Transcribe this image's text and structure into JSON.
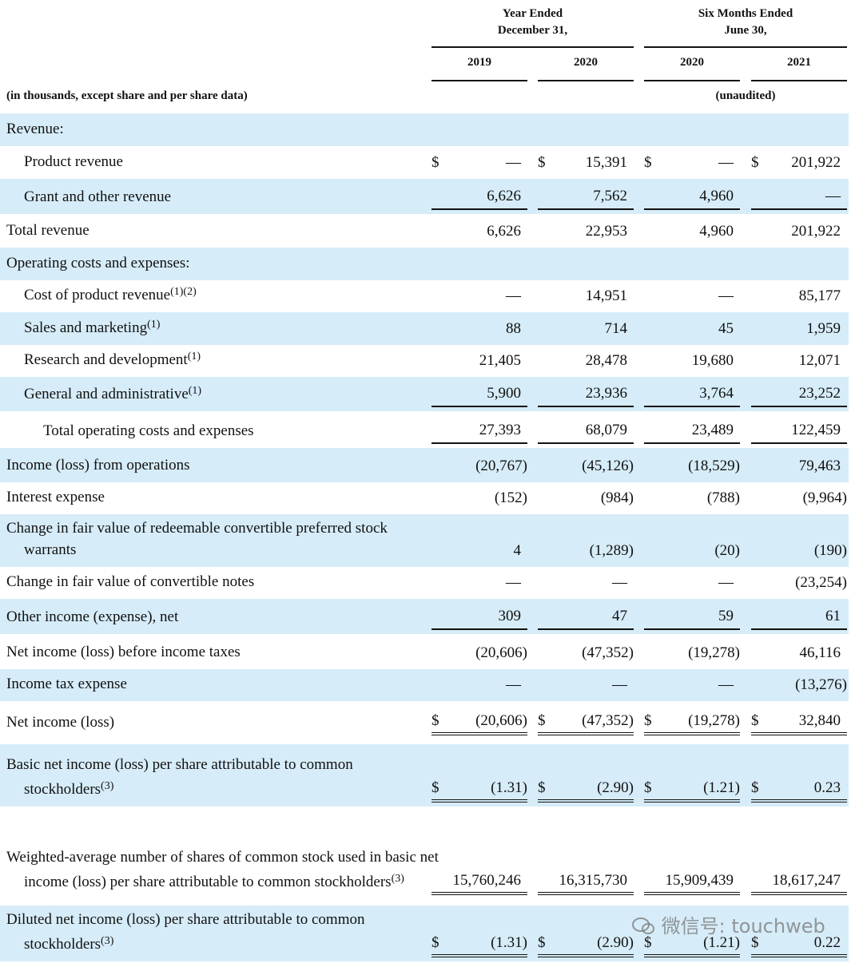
{
  "header": {
    "groups": [
      [
        "Year Ended",
        "December 31,"
      ],
      [
        "Six Months Ended",
        "June 30,"
      ]
    ],
    "columns": [
      "2019",
      "2020",
      "2020",
      "2021"
    ],
    "note": "(in thousands, except share and per share data)",
    "unaudited": "(unaudited)"
  },
  "table": {
    "rows": [
      {
        "label": "Revenue:"
      },
      {
        "label": "Product revenue",
        "signs": [
          "$",
          "$",
          "$",
          "$"
        ],
        "values": [
          "—",
          "15,391",
          "—",
          "201,922"
        ]
      },
      {
        "label": "Grant and other revenue",
        "values": [
          "6,626",
          "7,562",
          "4,960",
          "—"
        ]
      },
      {
        "label": "Total revenue",
        "values": [
          "6,626",
          "22,953",
          "4,960",
          "201,922"
        ]
      },
      {
        "label": "Operating costs and expenses:"
      },
      {
        "label": "Cost of product revenue",
        "note": "(1)(2)",
        "values": [
          "—",
          "14,951",
          "—",
          "85,177"
        ]
      },
      {
        "label": "Sales and marketing",
        "note": "(1)",
        "values": [
          "88",
          "714",
          "45",
          "1,959"
        ]
      },
      {
        "label": "Research and development",
        "note": "(1)",
        "values": [
          "21,405",
          "28,478",
          "19,680",
          "12,071"
        ]
      },
      {
        "label": "General and administrative",
        "note": "(1)",
        "values": [
          "5,900",
          "23,936",
          "3,764",
          "23,252"
        ]
      },
      {
        "label": "Total operating costs and expenses",
        "values": [
          "27,393",
          "68,079",
          "23,489",
          "122,459"
        ]
      },
      {
        "label": "Income (loss) from operations",
        "values": [
          "(20,767)",
          "(45,126)",
          "(18,529)",
          "79,463"
        ]
      },
      {
        "label": "Interest expense",
        "values": [
          "(152)",
          "(984)",
          "(788)",
          "(9,964)"
        ]
      },
      {
        "label": "Change in fair value of redeemable convertible preferred stock warrants",
        "values": [
          "4",
          "(1,289)",
          "(20)",
          "(190)"
        ]
      },
      {
        "label": "Change in fair value of convertible notes",
        "values": [
          "—",
          "—",
          "—",
          "(23,254)"
        ]
      },
      {
        "label": "Other income (expense), net",
        "values": [
          "309",
          "47",
          "59",
          "61"
        ]
      },
      {
        "label": "Net income (loss) before income taxes",
        "values": [
          "(20,606)",
          "(47,352)",
          "(19,278)",
          "46,116"
        ]
      },
      {
        "label": "Income tax expense",
        "values": [
          "—",
          "—",
          "—",
          "(13,276)"
        ]
      },
      {
        "label": "Net income (loss)",
        "signs": [
          "$",
          "$",
          "$",
          "$"
        ],
        "values": [
          "(20,606)",
          "(47,352)",
          "(19,278)",
          "32,840"
        ]
      },
      {
        "label": "Basic net income (loss) per share attributable to common stockholders",
        "note": "(3)",
        "signs": [
          "$",
          "$",
          "$",
          "$"
        ],
        "values": [
          "(1.31)",
          "(2.90)",
          "(1.21)",
          "0.23"
        ]
      },
      {
        "label": "Weighted-average number of shares of common stock used in basic net income (loss) per share attributable to common stockholders",
        "note": "(3)",
        "values": [
          "15,760,246",
          "16,315,730",
          "15,909,439",
          "18,617,247"
        ]
      },
      {
        "label": "Diluted net income (loss) per share attributable to common stockholders",
        "note": "(3)",
        "signs": [
          "$",
          "$",
          "$",
          "$"
        ],
        "values": [
          "(1.31)",
          "(2.90)",
          "(1.21)",
          "0.22"
        ]
      }
    ]
  },
  "watermark": "微信号: touchweb"
}
